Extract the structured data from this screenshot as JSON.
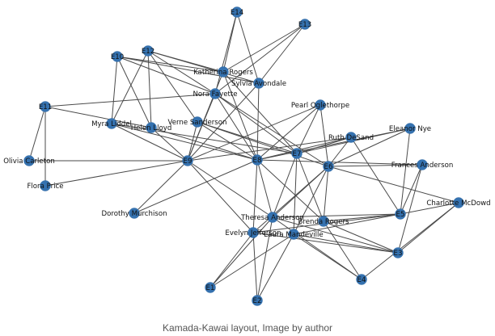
{
  "caption": "Kamada-Kawai layout, Image by author",
  "node_color": "#3572b0",
  "edge_color": "#4a4a4a",
  "nodes": [
    "E14",
    "E13",
    "E12",
    "E10",
    "E11",
    "E9",
    "E8",
    "E7",
    "E6",
    "E5",
    "E4",
    "E3",
    "E2",
    "E1",
    "Katherina Rogers",
    "Sylvia Avondale",
    "Nora Fayette",
    "Myra Liddel",
    "Helen Lloyd",
    "Verne Sanderson",
    "Pearl Oglethorpe",
    "Ruth DeSand",
    "Eleanor Nye",
    "Frances Anderson",
    "Charlotte McDowd",
    "Olivia Carleton",
    "Flora Price",
    "Dorothy Murchison",
    "Theresa Anderson",
    "Brenda Rogers",
    "Evelyn Jefferson",
    "Laura Mandeville"
  ],
  "edges": [
    [
      "E14",
      "Katherina Rogers"
    ],
    [
      "E14",
      "Sylvia Avondale"
    ],
    [
      "E14",
      "Nora Fayette"
    ],
    [
      "E13",
      "Katherina Rogers"
    ],
    [
      "E13",
      "Sylvia Avondale"
    ],
    [
      "E13",
      "Nora Fayette"
    ],
    [
      "E12",
      "Katherina Rogers"
    ],
    [
      "E12",
      "Sylvia Avondale"
    ],
    [
      "E12",
      "Nora Fayette"
    ],
    [
      "E12",
      "Myra Liddel"
    ],
    [
      "E12",
      "Helen Lloyd"
    ],
    [
      "E12",
      "Verne Sanderson"
    ],
    [
      "E10",
      "Katherina Rogers"
    ],
    [
      "E10",
      "Sylvia Avondale"
    ],
    [
      "E10",
      "Nora Fayette"
    ],
    [
      "E10",
      "Myra Liddel"
    ],
    [
      "E10",
      "Helen Lloyd"
    ],
    [
      "E11",
      "Nora Fayette"
    ],
    [
      "E11",
      "Helen Lloyd"
    ],
    [
      "E11",
      "Olivia Carleton"
    ],
    [
      "E11",
      "Flora Price"
    ],
    [
      "E9",
      "Olivia Carleton"
    ],
    [
      "E9",
      "Flora Price"
    ],
    [
      "E9",
      "Dorothy Murchison"
    ],
    [
      "E9",
      "Katherina Rogers"
    ],
    [
      "E9",
      "Sylvia Avondale"
    ],
    [
      "E9",
      "Nora Fayette"
    ],
    [
      "E9",
      "Myra Liddel"
    ],
    [
      "E9",
      "Helen Lloyd"
    ],
    [
      "E9",
      "Verne Sanderson"
    ],
    [
      "E9",
      "Pearl Oglethorpe"
    ],
    [
      "E9",
      "Ruth DeSand"
    ],
    [
      "E9",
      "Theresa Anderson"
    ],
    [
      "E9",
      "Evelyn Jefferson"
    ],
    [
      "E8",
      "Katherina Rogers"
    ],
    [
      "E8",
      "Sylvia Avondale"
    ],
    [
      "E8",
      "Nora Fayette"
    ],
    [
      "E8",
      "Myra Liddel"
    ],
    [
      "E8",
      "Helen Lloyd"
    ],
    [
      "E8",
      "Verne Sanderson"
    ],
    [
      "E8",
      "Pearl Oglethorpe"
    ],
    [
      "E8",
      "Ruth DeSand"
    ],
    [
      "E8",
      "Eleanor Nye"
    ],
    [
      "E8",
      "Frances Anderson"
    ],
    [
      "E8",
      "Theresa Anderson"
    ],
    [
      "E8",
      "Brenda Rogers"
    ],
    [
      "E8",
      "Evelyn Jefferson"
    ],
    [
      "E8",
      "Dorothy Murchison"
    ],
    [
      "E7",
      "Nora Fayette"
    ],
    [
      "E7",
      "Myra Liddel"
    ],
    [
      "E7",
      "Verne Sanderson"
    ],
    [
      "E7",
      "Ruth DeSand"
    ],
    [
      "E7",
      "Eleanor Nye"
    ],
    [
      "E7",
      "Pearl Oglethorpe"
    ],
    [
      "E7",
      "Theresa Anderson"
    ],
    [
      "E7",
      "Brenda Rogers"
    ],
    [
      "E7",
      "Laura Mandeville"
    ],
    [
      "E7",
      "Katherina Rogers"
    ],
    [
      "E6",
      "Nora Fayette"
    ],
    [
      "E6",
      "Verne Sanderson"
    ],
    [
      "E6",
      "Ruth DeSand"
    ],
    [
      "E6",
      "Eleanor Nye"
    ],
    [
      "E6",
      "Frances Anderson"
    ],
    [
      "E6",
      "Pearl Oglethorpe"
    ],
    [
      "E6",
      "Theresa Anderson"
    ],
    [
      "E6",
      "Brenda Rogers"
    ],
    [
      "E6",
      "Evelyn Jefferson"
    ],
    [
      "E6",
      "Laura Mandeville"
    ],
    [
      "E6",
      "Charlotte McDowd"
    ],
    [
      "E5",
      "Ruth DeSand"
    ],
    [
      "E5",
      "Eleanor Nye"
    ],
    [
      "E5",
      "Frances Anderson"
    ],
    [
      "E5",
      "Charlotte McDowd"
    ],
    [
      "E5",
      "Theresa Anderson"
    ],
    [
      "E5",
      "Brenda Rogers"
    ],
    [
      "E5",
      "Evelyn Jefferson"
    ],
    [
      "E5",
      "Laura Mandeville"
    ],
    [
      "E4",
      "Charlotte McDowd"
    ],
    [
      "E4",
      "Theresa Anderson"
    ],
    [
      "E4",
      "Brenda Rogers"
    ],
    [
      "E4",
      "Laura Mandeville"
    ],
    [
      "E3",
      "Charlotte McDowd"
    ],
    [
      "E3",
      "Frances Anderson"
    ],
    [
      "E3",
      "Brenda Rogers"
    ],
    [
      "E3",
      "Theresa Anderson"
    ],
    [
      "E3",
      "Evelyn Jefferson"
    ],
    [
      "E3",
      "Laura Mandeville"
    ],
    [
      "E2",
      "Theresa Anderson"
    ],
    [
      "E2",
      "Evelyn Jefferson"
    ],
    [
      "E2",
      "Laura Mandeville"
    ],
    [
      "E1",
      "Theresa Anderson"
    ],
    [
      "E1",
      "Evelyn Jefferson"
    ],
    [
      "E1",
      "Laura Mandeville"
    ]
  ]
}
